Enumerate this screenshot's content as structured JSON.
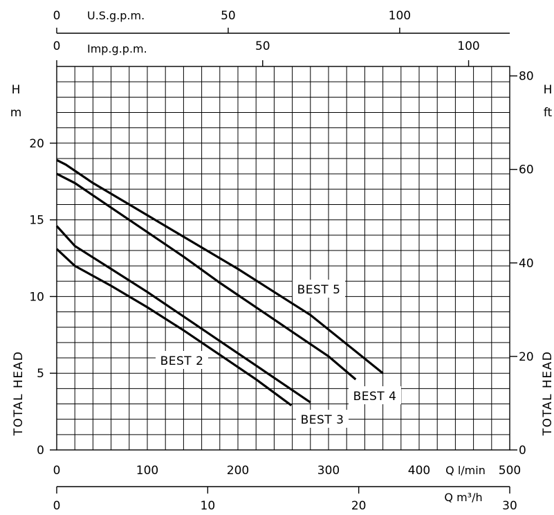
{
  "chart_data": {
    "type": "line",
    "x_lpm": {
      "ticks": [
        0,
        100,
        200,
        300,
        400,
        500
      ],
      "unit": "Q l/min",
      "range": [
        0,
        500
      ]
    },
    "x_m3h": {
      "ticks": [
        0,
        10,
        20,
        30
      ],
      "unit": "Q m³/h",
      "range": [
        0,
        30
      ]
    },
    "x_usgpm": {
      "ticks": [
        0,
        50,
        100
      ],
      "unit": "U.S.g.p.m."
    },
    "x_impgpm": {
      "ticks": [
        0,
        50,
        100
      ],
      "unit": "Imp.g.p.m."
    },
    "y_m": {
      "ticks": [
        0,
        5,
        10,
        15,
        20
      ],
      "unit_top": "H",
      "unit_bottom": "m",
      "range": [
        0,
        25
      ]
    },
    "y_ft": {
      "ticks": [
        0,
        20,
        40,
        60,
        80
      ],
      "unit_top": "H",
      "unit_bottom": "ft"
    },
    "ylabel": "TOTAL HEAD",
    "grid": true,
    "series": [
      {
        "name": "BEST 2",
        "x": [
          0,
          20,
          60,
          100,
          140,
          180,
          220,
          259
        ],
        "y": [
          13.1,
          12.0,
          10.7,
          9.3,
          7.8,
          6.2,
          4.6,
          2.9
        ]
      },
      {
        "name": "BEST 3",
        "x": [
          0,
          20,
          60,
          100,
          140,
          180,
          220,
          260,
          280
        ],
        "y": [
          14.6,
          13.3,
          11.8,
          10.3,
          8.7,
          7.1,
          5.5,
          3.9,
          3.1
        ]
      },
      {
        "name": "BEST 4",
        "x": [
          0,
          20,
          60,
          100,
          140,
          180,
          220,
          260,
          300,
          330
        ],
        "y": [
          18.0,
          17.4,
          15.8,
          14.2,
          12.6,
          10.9,
          9.3,
          7.7,
          6.1,
          4.6
        ]
      },
      {
        "name": "BEST 5",
        "x": [
          0,
          10,
          40,
          80,
          120,
          160,
          200,
          240,
          280,
          320,
          360
        ],
        "y": [
          18.9,
          18.6,
          17.4,
          16.0,
          14.6,
          13.2,
          11.8,
          10.3,
          8.8,
          6.9,
          5.0
        ]
      }
    ]
  }
}
